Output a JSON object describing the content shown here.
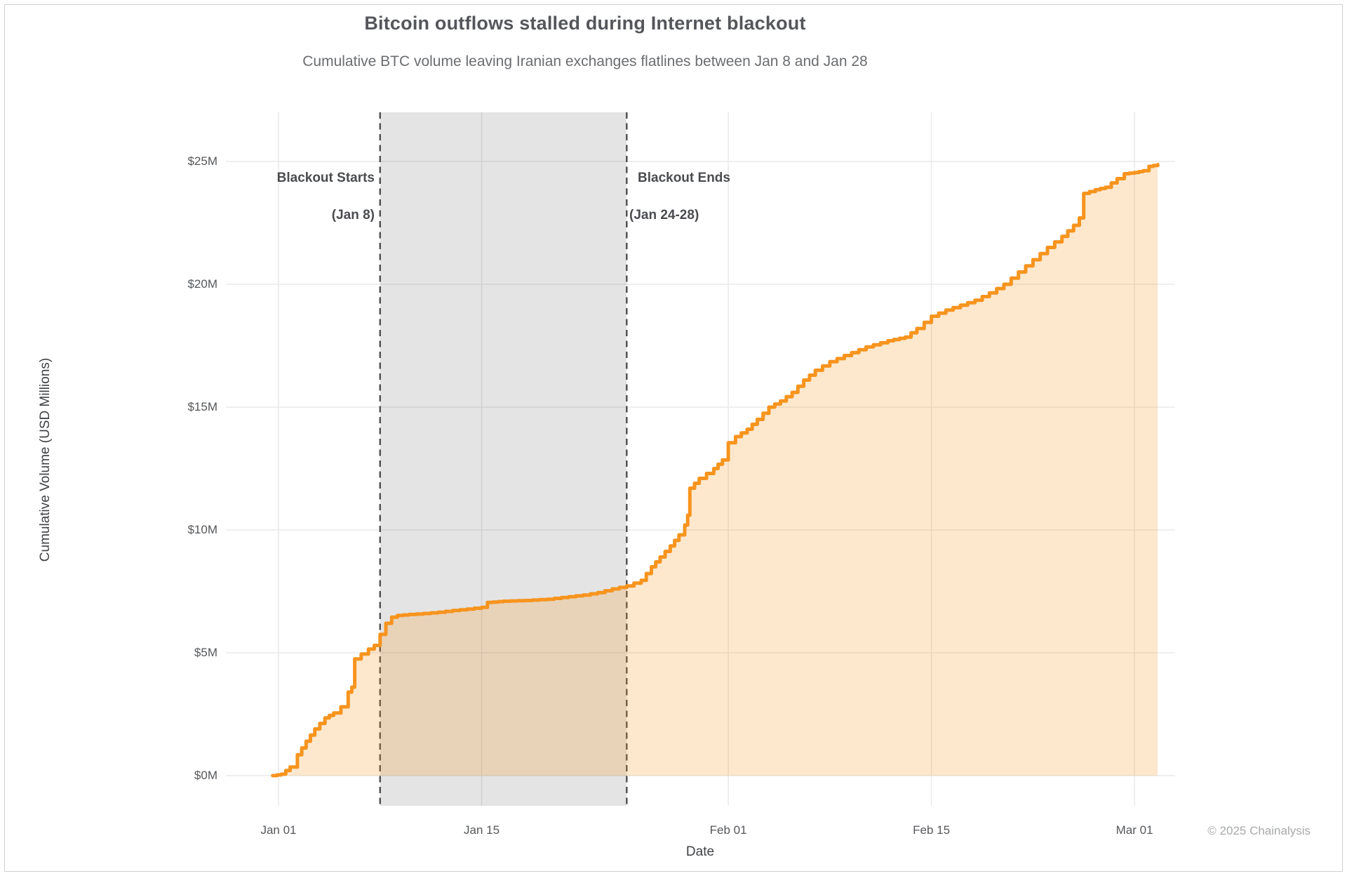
{
  "chart_data": {
    "type": "area",
    "title": "Bitcoin outflows stalled during Internet blackout",
    "subtitle": "Cumulative BTC volume leaving Iranian exchanges flatlines between Jan 8 and Jan 28",
    "xlabel": "Date",
    "ylabel": "Cumulative Volume (USD Millions)",
    "x_unit_days_since": "Jan 01",
    "x_ticks": [
      {
        "day": 0,
        "label": "Jan 01"
      },
      {
        "day": 14,
        "label": "Jan 15"
      },
      {
        "day": 31,
        "label": "Feb 01"
      },
      {
        "day": 45,
        "label": "Feb 15"
      },
      {
        "day": 59,
        "label": "Mar 01"
      }
    ],
    "y_ticks": [
      {
        "value": 0,
        "label": "$0M"
      },
      {
        "value": 5,
        "label": "$5M"
      },
      {
        "value": 10,
        "label": "$10M"
      },
      {
        "value": 15,
        "label": "$15M"
      },
      {
        "value": 20,
        "label": "$20M"
      },
      {
        "value": 25,
        "label": "$25M"
      }
    ],
    "ylim": [
      0,
      25
    ],
    "grid": true,
    "legend": "none",
    "blackout_region": {
      "start_day": 7,
      "end_day": 24,
      "start_line1": "Blackout Starts",
      "start_line2": "(Jan 8)",
      "end_line1": "Blackout Ends",
      "end_line2": "(Jan 24-28)"
    },
    "series": [
      {
        "name": "Cumulative BTC volume leaving Iranian exchanges (USD millions)",
        "points_day_value": [
          [
            -0.4,
            0
          ],
          [
            0.2,
            0.06
          ],
          [
            0.8,
            0.35
          ],
          [
            1.3,
            0.85
          ],
          [
            1.9,
            1.4
          ],
          [
            2.5,
            1.9
          ],
          [
            3.2,
            2.35
          ],
          [
            3.8,
            2.55
          ],
          [
            4.3,
            2.8
          ],
          [
            4.8,
            3.4
          ],
          [
            5.05,
            3.6
          ],
          [
            5.25,
            4.75
          ],
          [
            5.7,
            4.95
          ],
          [
            6.2,
            5.15
          ],
          [
            6.6,
            5.3
          ],
          [
            7.0,
            5.75
          ],
          [
            7.4,
            6.2
          ],
          [
            7.8,
            6.45
          ],
          [
            8.2,
            6.52
          ],
          [
            9,
            6.56
          ],
          [
            10,
            6.6
          ],
          [
            11,
            6.65
          ],
          [
            12,
            6.72
          ],
          [
            13,
            6.78
          ],
          [
            14,
            6.85
          ],
          [
            14.4,
            7.05
          ],
          [
            15.5,
            7.1
          ],
          [
            17,
            7.13
          ],
          [
            18.5,
            7.18
          ],
          [
            19.5,
            7.25
          ],
          [
            21,
            7.35
          ],
          [
            22,
            7.45
          ],
          [
            23,
            7.6
          ],
          [
            24,
            7.72
          ],
          [
            25,
            7.95
          ],
          [
            25.7,
            8.5
          ],
          [
            26.3,
            8.9
          ],
          [
            27,
            9.35
          ],
          [
            27.6,
            9.8
          ],
          [
            28,
            10.2
          ],
          [
            28.2,
            10.6
          ],
          [
            28.35,
            11.7
          ],
          [
            29,
            12.1
          ],
          [
            30,
            12.5
          ],
          [
            30.6,
            12.85
          ],
          [
            31,
            13.55
          ],
          [
            31.5,
            13.8
          ],
          [
            32.3,
            14.1
          ],
          [
            33,
            14.5
          ],
          [
            33.8,
            15.0
          ],
          [
            34.6,
            15.25
          ],
          [
            35.4,
            15.6
          ],
          [
            36.2,
            16.1
          ],
          [
            37,
            16.5
          ],
          [
            38,
            16.85
          ],
          [
            39,
            17.1
          ],
          [
            40.5,
            17.45
          ],
          [
            42,
            17.7
          ],
          [
            43.2,
            17.85
          ],
          [
            44,
            18.2
          ],
          [
            45,
            18.7
          ],
          [
            46,
            18.95
          ],
          [
            47,
            19.15
          ],
          [
            48,
            19.35
          ],
          [
            49,
            19.65
          ],
          [
            50,
            20.0
          ],
          [
            51,
            20.5
          ],
          [
            52,
            21.0
          ],
          [
            53,
            21.5
          ],
          [
            54,
            21.95
          ],
          [
            54.8,
            22.4
          ],
          [
            55.2,
            22.7
          ],
          [
            55.5,
            23.7
          ],
          [
            56.3,
            23.85
          ],
          [
            57,
            23.95
          ],
          [
            57.8,
            24.3
          ],
          [
            58.3,
            24.5
          ],
          [
            59,
            24.55
          ],
          [
            59.6,
            24.62
          ],
          [
            60.0,
            24.8
          ],
          [
            60.6,
            24.87
          ]
        ]
      }
    ],
    "colors": {
      "line": "#F7941E",
      "area_fill": "rgba(247,148,30,0.22)",
      "blackout_band": "rgba(0,0,0,0.105)",
      "dashed_border": "#4d4d4d",
      "gridline": "#eaeaea"
    }
  },
  "footer": {
    "copyright": "© 2025 Chainalysis"
  }
}
